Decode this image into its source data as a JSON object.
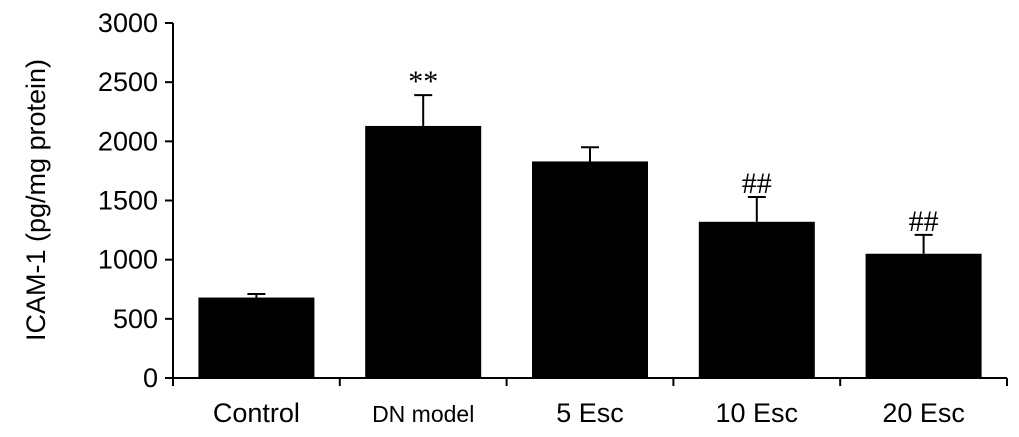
{
  "chart_data": {
    "type": "bar",
    "categories": [
      "Control",
      "DN model",
      "5 Esc",
      "10 Esc",
      "20 Esc"
    ],
    "values": [
      680,
      2130,
      1830,
      1320,
      1050
    ],
    "errors": [
      30,
      260,
      120,
      210,
      160
    ],
    "annotations": [
      "",
      "**",
      "",
      "##",
      "##"
    ],
    "title": "",
    "xlabel": "",
    "ylabel": "ICAM-1 (pg/mg protein)",
    "ylim": [
      0,
      3000
    ],
    "yticks": [
      0,
      500,
      1000,
      1500,
      2000,
      2500,
      3000
    ],
    "grid": false,
    "bar_color": "#000000"
  }
}
